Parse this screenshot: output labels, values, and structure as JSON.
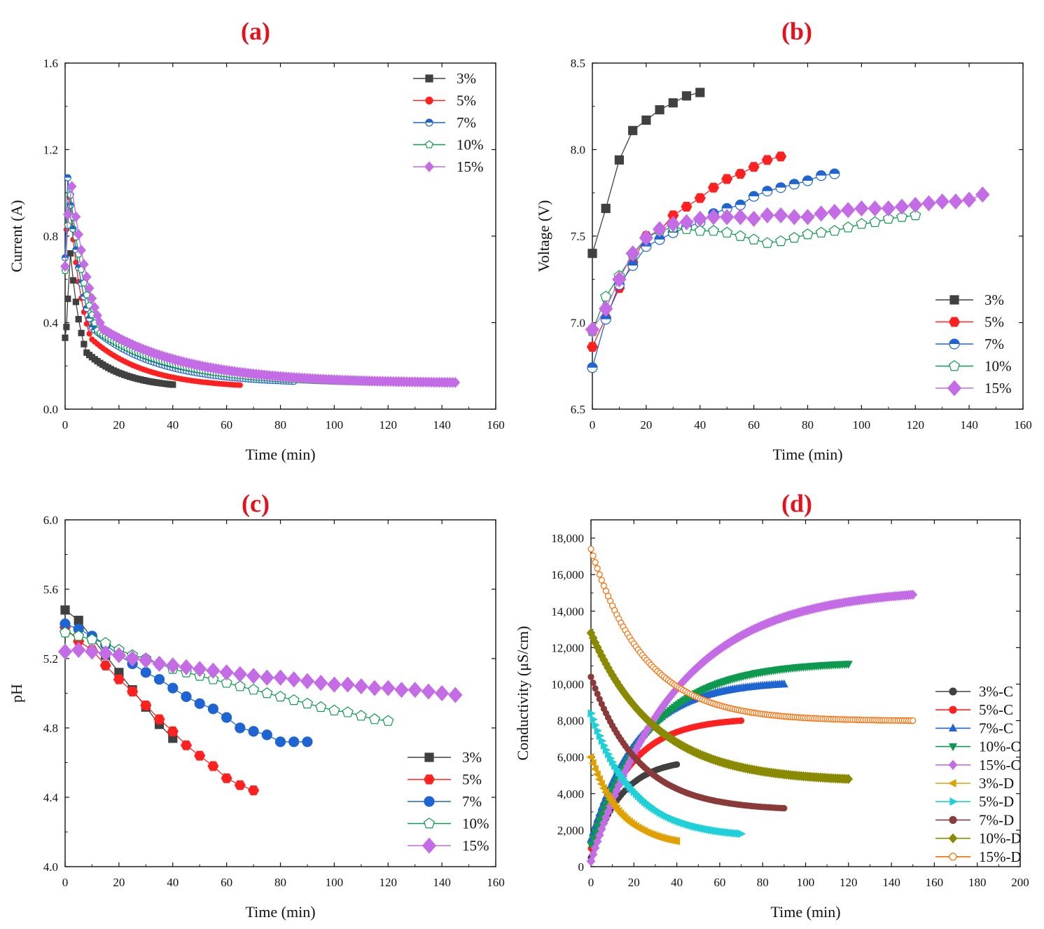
{
  "chart_data": [
    {
      "id": "a",
      "panel_label": "(a)",
      "type": "line",
      "xlabel": "Time (min)",
      "ylabel": "Current (A)",
      "xlim": [
        0,
        160
      ],
      "ylim": [
        0.0,
        1.6
      ],
      "xticks": [
        0,
        20,
        40,
        60,
        80,
        100,
        120,
        140,
        160
      ],
      "yticks": [
        0.0,
        0.4,
        0.8,
        1.2,
        1.6
      ],
      "ytick_labels": [
        "0.0",
        "0.4",
        "0.8",
        "1.2",
        "1.6"
      ],
      "legend_position": "top-right",
      "series": [
        {
          "name": "3%",
          "color": "#404040",
          "marker": "square",
          "marker_size": 4,
          "fill": "full",
          "kind": "peak",
          "peak_t": 2,
          "peak_v": 0.72,
          "rise": [
            [
              0,
              0.33
            ],
            [
              0.5,
              0.38
            ],
            [
              1,
              0.51
            ]
          ],
          "end_t": 40,
          "end_v": 0.1,
          "tau": 4.5,
          "step": 1,
          "spacing_data": 0.3
        },
        {
          "name": "5%",
          "color": "#ff2020",
          "marker": "circle",
          "marker_size": 3.5,
          "fill": "full",
          "kind": "peak",
          "peak_t": 1.5,
          "peak_v": 0.98,
          "rise": [
            [
              0,
              0.66
            ],
            [
              0.5,
              0.83
            ]
          ],
          "end_t": 65,
          "end_v": 0.1,
          "tau": 6,
          "step": 1,
          "spacing_data": 0.3
        },
        {
          "name": "7%",
          "color": "#1e64d2",
          "marker": "circle",
          "marker_size": 4.5,
          "fill": "half-light",
          "kind": "peak",
          "peak_t": 1,
          "peak_v": 1.07,
          "rise": [
            [
              0,
              0.7
            ]
          ],
          "end_t": 85,
          "end_v": 0.12,
          "tau": 7,
          "step": 1,
          "spacing_data": 0.3
        },
        {
          "name": "10%",
          "color": "#0e9a4e",
          "marker": "pentagon",
          "marker_size": 4.5,
          "fill": "half-light",
          "kind": "peak",
          "peak_t": 2,
          "peak_v": 0.99,
          "rise": [
            [
              0,
              0.64
            ],
            [
              1,
              0.85
            ]
          ],
          "end_t": 115,
          "end_v": 0.12,
          "tau": 8,
          "step": 1,
          "spacing_data": 0.3
        },
        {
          "name": "15%",
          "color": "#c46be6",
          "marker": "diamond",
          "marker_size": 5.5,
          "fill": "full",
          "kind": "peak",
          "peak_t": 2.5,
          "peak_v": 1.03,
          "rise": [
            [
              0,
              0.66
            ],
            [
              1,
              0.9
            ]
          ],
          "end_t": 145,
          "end_v": 0.12,
          "tau": 9,
          "step": 1,
          "spacing_data": 0.3
        }
      ]
    },
    {
      "id": "b",
      "panel_label": "(b)",
      "type": "line",
      "xlabel": "Time (min)",
      "ylabel": "Voltage (V)",
      "xlim": [
        0,
        160
      ],
      "ylim": [
        6.5,
        8.5
      ],
      "xticks": [
        0,
        20,
        40,
        60,
        80,
        100,
        120,
        140,
        160
      ],
      "yticks": [
        6.5,
        7.0,
        7.5,
        8.0,
        8.5
      ],
      "ytick_labels": [
        "6.5",
        "7.0",
        "7.5",
        "8.0",
        "8.5"
      ],
      "legend_position": "bottom-right",
      "series": [
        {
          "name": "3%",
          "color": "#404040",
          "marker": "square",
          "marker_size": 6,
          "fill": "full",
          "kind": "points",
          "x": [
            0,
            5,
            10,
            15,
            20,
            25,
            30,
            35,
            40
          ],
          "y": [
            7.4,
            7.66,
            7.94,
            8.11,
            8.17,
            8.23,
            8.27,
            8.31,
            8.33
          ]
        },
        {
          "name": "5%",
          "color": "#ff2020",
          "marker": "hexagon",
          "marker_size": 7,
          "fill": "full",
          "kind": "points",
          "x": [
            0,
            5,
            10,
            15,
            20,
            25,
            30,
            35,
            40,
            45,
            50,
            55,
            60,
            65,
            70
          ],
          "y": [
            6.86,
            7.03,
            7.2,
            7.35,
            7.5,
            7.53,
            7.62,
            7.67,
            7.72,
            7.78,
            7.83,
            7.86,
            7.9,
            7.94,
            7.96
          ]
        },
        {
          "name": "7%",
          "color": "#1e64d2",
          "marker": "circle",
          "marker_size": 7,
          "fill": "half-light",
          "kind": "points",
          "x": [
            0,
            5,
            10,
            15,
            20,
            25,
            30,
            35,
            40,
            45,
            50,
            55,
            60,
            65,
            70,
            75,
            80,
            85,
            90
          ],
          "y": [
            6.74,
            7.02,
            7.22,
            7.33,
            7.44,
            7.48,
            7.52,
            7.55,
            7.58,
            7.63,
            7.66,
            7.68,
            7.73,
            7.76,
            7.78,
            7.8,
            7.82,
            7.85,
            7.86
          ]
        },
        {
          "name": "10%",
          "color": "#0e9a4e",
          "marker": "pentagon",
          "marker_size": 7,
          "fill": "half-light",
          "kind": "points",
          "x": [
            0,
            5,
            10,
            15,
            20,
            25,
            30,
            35,
            40,
            45,
            50,
            55,
            60,
            65,
            70,
            75,
            80,
            85,
            90,
            95,
            100,
            105,
            110,
            115,
            120
          ],
          "y": [
            6.95,
            7.15,
            7.27,
            7.39,
            7.49,
            7.53,
            7.55,
            7.54,
            7.53,
            7.53,
            7.52,
            7.5,
            7.48,
            7.46,
            7.47,
            7.49,
            7.51,
            7.52,
            7.53,
            7.55,
            7.57,
            7.58,
            7.6,
            7.61,
            7.62
          ]
        },
        {
          "name": "15%",
          "color": "#c46be6",
          "marker": "diamond",
          "marker_size": 8.5,
          "fill": "full",
          "kind": "points",
          "x": [
            0,
            5,
            10,
            15,
            20,
            25,
            30,
            35,
            40,
            45,
            50,
            55,
            60,
            65,
            70,
            75,
            80,
            85,
            90,
            95,
            100,
            105,
            110,
            115,
            120,
            125,
            130,
            135,
            140,
            145
          ],
          "y": [
            6.96,
            7.08,
            7.25,
            7.4,
            7.49,
            7.54,
            7.57,
            7.58,
            7.6,
            7.61,
            7.61,
            7.61,
            7.6,
            7.62,
            7.62,
            7.61,
            7.61,
            7.63,
            7.64,
            7.65,
            7.66,
            7.66,
            7.66,
            7.67,
            7.68,
            7.69,
            7.7,
            7.7,
            7.71,
            7.74
          ]
        }
      ]
    },
    {
      "id": "c",
      "panel_label": "(c)",
      "type": "line",
      "xlabel": "Time (min)",
      "ylabel": "pH",
      "xlim": [
        0,
        160
      ],
      "ylim": [
        4.0,
        6.0
      ],
      "xticks": [
        0,
        20,
        40,
        60,
        80,
        100,
        120,
        140,
        160
      ],
      "yticks": [
        4.0,
        4.4,
        4.8,
        5.2,
        5.6,
        6.0
      ],
      "ytick_labels": [
        "4.0",
        "4.4",
        "4.8",
        "5.2",
        "5.6",
        "6.0"
      ],
      "legend_position": "bottom-right",
      "series": [
        {
          "name": "3%",
          "color": "#404040",
          "marker": "square",
          "marker_size": 6,
          "fill": "full",
          "kind": "points",
          "x": [
            0,
            5,
            10,
            15,
            20,
            25,
            30,
            35,
            40
          ],
          "y": [
            5.48,
            5.42,
            5.32,
            5.22,
            5.12,
            5.02,
            4.92,
            4.82,
            4.74
          ]
        },
        {
          "name": "5%",
          "color": "#ff2020",
          "marker": "hexagon",
          "marker_size": 7,
          "fill": "full",
          "kind": "points",
          "x": [
            0,
            5,
            10,
            15,
            20,
            25,
            30,
            35,
            40,
            45,
            50,
            55,
            60,
            65,
            70
          ],
          "y": [
            5.38,
            5.3,
            5.25,
            5.16,
            5.08,
            5.01,
            4.93,
            4.85,
            4.78,
            4.7,
            4.64,
            4.58,
            4.51,
            4.47,
            4.44
          ]
        },
        {
          "name": "7%",
          "color": "#1e64d2",
          "marker": "circle",
          "marker_size": 7,
          "fill": "full",
          "kind": "points",
          "x": [
            0,
            5,
            10,
            15,
            20,
            25,
            30,
            35,
            40,
            45,
            50,
            55,
            60,
            65,
            70,
            75,
            80,
            85,
            90
          ],
          "y": [
            5.4,
            5.37,
            5.33,
            5.28,
            5.22,
            5.17,
            5.12,
            5.08,
            5.03,
            4.98,
            4.94,
            4.91,
            4.86,
            4.8,
            4.78,
            4.76,
            4.72,
            4.72,
            4.72
          ]
        },
        {
          "name": "10%",
          "color": "#0e9a4e",
          "marker": "pentagon",
          "marker_size": 7,
          "fill": "half-light",
          "kind": "points",
          "x": [
            0,
            5,
            10,
            15,
            20,
            25,
            30,
            35,
            40,
            45,
            50,
            55,
            60,
            65,
            70,
            75,
            80,
            85,
            90,
            95,
            100,
            105,
            110,
            115,
            120
          ],
          "y": [
            5.35,
            5.33,
            5.31,
            5.29,
            5.25,
            5.22,
            5.2,
            5.17,
            5.14,
            5.12,
            5.1,
            5.08,
            5.06,
            5.04,
            5.02,
            5.0,
            4.98,
            4.96,
            4.94,
            4.92,
            4.9,
            4.89,
            4.87,
            4.85,
            4.84
          ]
        },
        {
          "name": "15%",
          "color": "#c46be6",
          "marker": "diamond",
          "marker_size": 8.5,
          "fill": "full",
          "kind": "points",
          "x": [
            0,
            5,
            10,
            15,
            20,
            25,
            30,
            35,
            40,
            45,
            50,
            55,
            60,
            65,
            70,
            75,
            80,
            85,
            90,
            95,
            100,
            105,
            110,
            115,
            120,
            125,
            130,
            135,
            140,
            145
          ],
          "y": [
            5.24,
            5.25,
            5.24,
            5.23,
            5.22,
            5.2,
            5.19,
            5.17,
            5.16,
            5.15,
            5.14,
            5.13,
            5.12,
            5.11,
            5.1,
            5.09,
            5.09,
            5.08,
            5.07,
            5.06,
            5.05,
            5.05,
            5.04,
            5.03,
            5.03,
            5.02,
            5.02,
            5.01,
            5.0,
            4.99
          ]
        }
      ]
    },
    {
      "id": "d",
      "panel_label": "(d)",
      "type": "line",
      "xlabel": "Time (min)",
      "ylabel": "Conductivity (μS/cm)",
      "xlim": [
        0,
        200
      ],
      "ylim": [
        0,
        19000
      ],
      "xticks": [
        0,
        20,
        40,
        60,
        80,
        100,
        120,
        140,
        160,
        180,
        200
      ],
      "yticks": [
        0,
        2000,
        4000,
        6000,
        8000,
        10000,
        12000,
        14000,
        16000,
        18000
      ],
      "ytick_labels": [
        "0",
        "2,000",
        "4,000",
        "6,000",
        "8,000",
        "10,000",
        "12,000",
        "14,000",
        "16,000",
        "18,000"
      ],
      "legend_position": "bottom-right",
      "series": [
        {
          "name": "3%-C",
          "color": "#404040",
          "marker": "circle",
          "marker_size": 4,
          "fill": "full",
          "kind": "exp",
          "y0": 500,
          "yend": 5600,
          "tau": 14,
          "end_t": 40,
          "step": 1,
          "spacing_data": 1
        },
        {
          "name": "5%-C",
          "color": "#ff2020",
          "marker": "circle",
          "marker_size": 4,
          "fill": "full",
          "kind": "exp",
          "y0": 1000,
          "yend": 8000,
          "tau": 18,
          "end_t": 70,
          "step": 1,
          "spacing_data": 1
        },
        {
          "name": "7%-C",
          "color": "#1e64d2",
          "marker": "triangle-up",
          "marker_size": 5,
          "fill": "full",
          "kind": "exp",
          "y0": 1500,
          "yend": 10000,
          "tau": 22,
          "end_t": 90,
          "step": 1,
          "spacing_data": 1
        },
        {
          "name": "10%-C",
          "color": "#0e9a4e",
          "marker": "triangle-down",
          "marker_size": 5,
          "fill": "full",
          "kind": "exp",
          "y0": 1200,
          "yend": 11100,
          "tau": 28,
          "end_t": 120,
          "step": 1,
          "spacing_data": 1
        },
        {
          "name": "15%-C",
          "color": "#c46be6",
          "marker": "diamond",
          "marker_size": 5,
          "fill": "full",
          "kind": "exp",
          "y0": 300,
          "yend": 14900,
          "tau": 40,
          "end_t": 150,
          "step": 1,
          "spacing_data": 1
        },
        {
          "name": "3%-D",
          "color": "#e0a000",
          "marker": "triangle-left",
          "marker_size": 5,
          "fill": "full",
          "kind": "exp",
          "y0": 6000,
          "yend": 1400,
          "tau": 14,
          "end_t": 40,
          "step": 1,
          "spacing_data": 1
        },
        {
          "name": "5%-D",
          "color": "#1fd0d8",
          "marker": "triangle-right",
          "marker_size": 5,
          "fill": "full",
          "kind": "exp",
          "y0": 8400,
          "yend": 1800,
          "tau": 20,
          "end_t": 70,
          "step": 1,
          "spacing_data": 1
        },
        {
          "name": "7%-D",
          "color": "#8b3a3a",
          "marker": "circle",
          "marker_size": 4,
          "fill": "full",
          "kind": "exp",
          "y0": 10400,
          "yend": 3200,
          "tau": 22,
          "end_t": 90,
          "step": 1,
          "spacing_data": 1
        },
        {
          "name": "10%-D",
          "color": "#8a8a00",
          "marker": "diamond",
          "marker_size": 5,
          "fill": "full",
          "kind": "exp",
          "y0": 12800,
          "yend": 4800,
          "tau": 30,
          "end_t": 120,
          "step": 1,
          "spacing_data": 1
        },
        {
          "name": "15%-D",
          "color": "#ff6a00",
          "marker": "circle",
          "marker_size": 4,
          "fill": "hollow",
          "kind": "exp",
          "y0": 17400,
          "yend": 8000,
          "tau": 25,
          "end_t": 150,
          "step": 1,
          "spacing_data": 1
        }
      ]
    }
  ]
}
